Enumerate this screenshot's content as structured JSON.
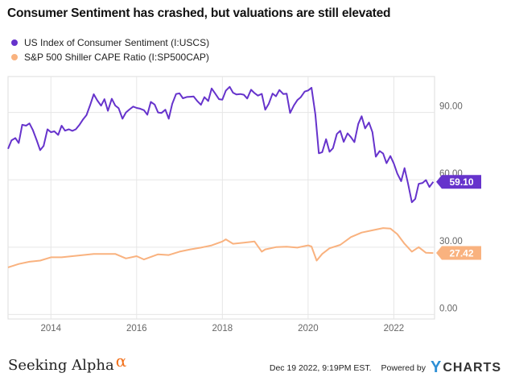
{
  "title": "Consumer Sentiment has crashed, but valuations are still elevated",
  "colors": {
    "sentiment": "#6633cc",
    "cape": "#f9b27f",
    "grid": "#e6e6e6",
    "axis_text": "#666666"
  },
  "chart_data": {
    "type": "line",
    "title": "Consumer Sentiment has crashed, but valuations are still elevated",
    "xlabel": "",
    "ylabel": "",
    "ylim": [
      -2,
      106
    ],
    "xlim": [
      2013.0,
      2022.95
    ],
    "y_ticks": [
      "0.00",
      "30.00",
      "60.00",
      "90.00"
    ],
    "x_ticks": [
      "2014",
      "2016",
      "2018",
      "2020",
      "2022"
    ],
    "grid": true,
    "legend_position": "top-left",
    "series": [
      {
        "name": "US Index of Consumer Sentiment (I:USCS)",
        "end_label": "59.10",
        "x": [
          2013.0,
          2013.08,
          2013.17,
          2013.25,
          2013.33,
          2013.42,
          2013.5,
          2013.58,
          2013.67,
          2013.75,
          2013.83,
          2013.92,
          2014.0,
          2014.08,
          2014.17,
          2014.25,
          2014.33,
          2014.42,
          2014.5,
          2014.58,
          2014.67,
          2014.75,
          2014.83,
          2014.92,
          2015.0,
          2015.08,
          2015.17,
          2015.25,
          2015.33,
          2015.42,
          2015.5,
          2015.58,
          2015.67,
          2015.75,
          2015.83,
          2015.92,
          2016.0,
          2016.08,
          2016.17,
          2016.25,
          2016.33,
          2016.42,
          2016.5,
          2016.58,
          2016.67,
          2016.75,
          2016.83,
          2016.92,
          2017.0,
          2017.08,
          2017.17,
          2017.25,
          2017.33,
          2017.42,
          2017.5,
          2017.58,
          2017.67,
          2017.75,
          2017.83,
          2017.92,
          2018.0,
          2018.08,
          2018.17,
          2018.25,
          2018.33,
          2018.42,
          2018.5,
          2018.58,
          2018.67,
          2018.75,
          2018.83,
          2018.92,
          2019.0,
          2019.08,
          2019.17,
          2019.25,
          2019.33,
          2019.42,
          2019.5,
          2019.58,
          2019.67,
          2019.75,
          2019.83,
          2019.92,
          2020.0,
          2020.08,
          2020.17,
          2020.25,
          2020.33,
          2020.42,
          2020.5,
          2020.58,
          2020.67,
          2020.75,
          2020.83,
          2020.92,
          2021.0,
          2021.08,
          2021.17,
          2021.25,
          2021.33,
          2021.42,
          2021.5,
          2021.58,
          2021.67,
          2021.75,
          2021.83,
          2021.92,
          2022.0,
          2022.08,
          2022.17,
          2022.25,
          2022.33,
          2022.42,
          2022.5,
          2022.58,
          2022.67,
          2022.75,
          2022.83,
          2022.92
        ],
        "y": [
          73.8,
          77.6,
          78.6,
          76.4,
          84.5,
          84.1,
          85.1,
          82.1,
          77.5,
          73.2,
          75.1,
          82.5,
          81.2,
          81.6,
          80.0,
          84.1,
          81.9,
          82.5,
          81.8,
          82.5,
          84.6,
          86.9,
          88.8,
          93.6,
          98.1,
          95.4,
          93.0,
          95.9,
          90.7,
          96.1,
          93.1,
          91.9,
          87.2,
          90.0,
          91.3,
          92.6,
          92.0,
          91.7,
          91.0,
          89.0,
          94.7,
          93.5,
          90.0,
          89.8,
          91.2,
          87.2,
          93.8,
          98.2,
          98.5,
          96.3,
          96.9,
          97.0,
          97.1,
          95.0,
          93.4,
          96.8,
          95.1,
          100.7,
          98.5,
          95.9,
          95.7,
          99.7,
          101.4,
          98.8,
          98.0,
          98.2,
          97.9,
          96.2,
          100.1,
          98.6,
          97.5,
          98.3,
          91.2,
          93.8,
          98.4,
          97.2,
          100.0,
          98.2,
          98.4,
          89.8,
          93.2,
          95.5,
          96.8,
          99.3,
          99.8,
          101.0,
          89.1,
          71.8,
          72.3,
          78.1,
          72.5,
          74.1,
          80.4,
          81.8,
          76.9,
          80.7,
          79.0,
          76.8,
          84.9,
          88.3,
          82.9,
          85.5,
          81.2,
          70.3,
          72.8,
          71.7,
          67.4,
          70.6,
          67.2,
          62.8,
          59.4,
          65.2,
          58.4,
          50.0,
          51.5,
          58.2,
          58.6,
          59.9,
          56.8,
          59.1
        ]
      },
      {
        "name": "S&P 500 Shiller CAPE Ratio (I:SP500CAP)",
        "end_label": "27.42",
        "x": [
          2013.0,
          2013.25,
          2013.5,
          2013.75,
          2014.0,
          2014.25,
          2014.5,
          2014.75,
          2015.0,
          2015.25,
          2015.5,
          2015.75,
          2016.0,
          2016.17,
          2016.5,
          2016.75,
          2017.0,
          2017.25,
          2017.5,
          2017.75,
          2018.0,
          2018.08,
          2018.25,
          2018.5,
          2018.75,
          2018.92,
          2019.0,
          2019.25,
          2019.5,
          2019.75,
          2020.0,
          2020.08,
          2020.2,
          2020.33,
          2020.5,
          2020.75,
          2021.0,
          2021.25,
          2021.5,
          2021.75,
          2021.92,
          2022.08,
          2022.25,
          2022.42,
          2022.58,
          2022.75,
          2022.92
        ],
        "y": [
          21.0,
          22.5,
          23.5,
          24.0,
          25.5,
          25.5,
          26.0,
          26.5,
          27.0,
          27.0,
          27.0,
          25.0,
          26.0,
          24.5,
          26.8,
          26.5,
          28.0,
          29.0,
          29.8,
          30.8,
          32.5,
          33.5,
          31.5,
          32.0,
          32.5,
          28.0,
          29.0,
          30.0,
          30.2,
          29.8,
          30.8,
          30.3,
          24.0,
          27.0,
          29.5,
          31.0,
          34.5,
          36.5,
          37.5,
          38.5,
          38.3,
          35.8,
          31.5,
          28.0,
          30.0,
          27.5,
          27.4
        ]
      }
    ]
  },
  "footer": {
    "brand": "Seeking Alpha",
    "brand_symbol": "α",
    "timestamp": "Dec 19 2022, 9:19PM EST.",
    "powered_by": "Powered by",
    "ycharts_y": "Y",
    "ycharts_rest": "CHARTS"
  }
}
